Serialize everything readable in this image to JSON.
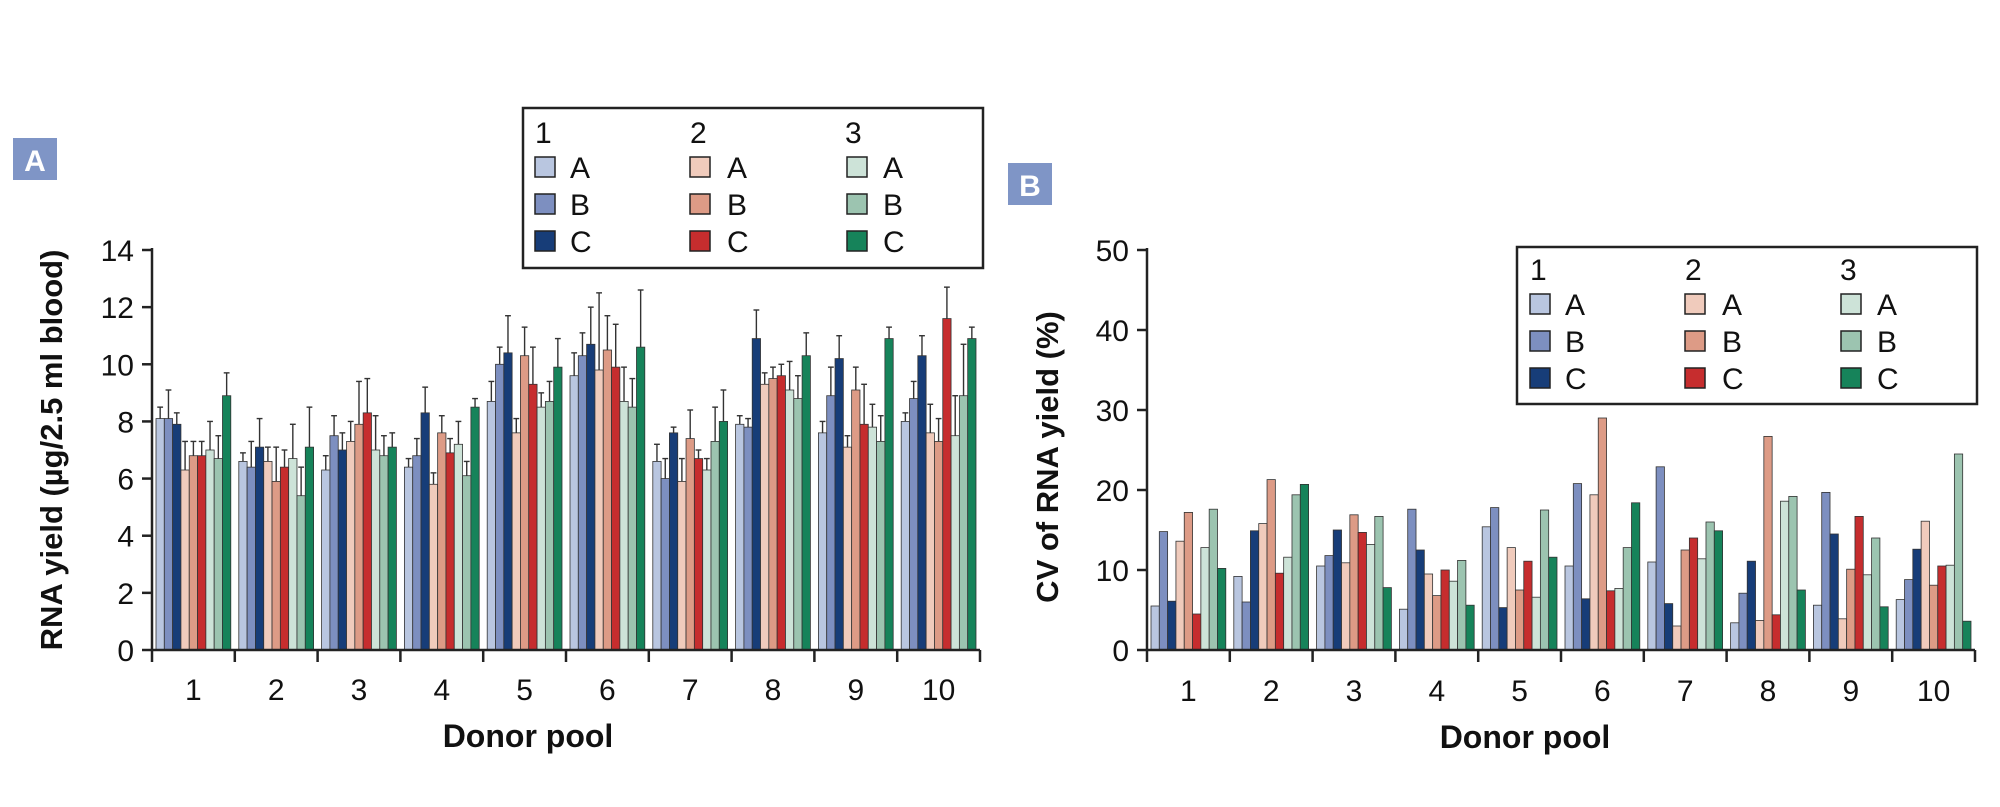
{
  "groups": [
    "1",
    "2",
    "3"
  ],
  "levels": [
    "A",
    "B",
    "C"
  ],
  "colors": {
    "1A": "#b9c6e0",
    "1B": "#7d8fc0",
    "1C": "#173d78",
    "2A": "#f0cbbc",
    "2B": "#dd9b86",
    "2C": "#c62d2e",
    "3A": "#cde3d8",
    "3B": "#9cc4b0",
    "3C": "#16835a",
    "axis": "#222222",
    "badge": "#7f95c6"
  },
  "chart_data": [
    {
      "panel": "A",
      "type": "bar",
      "xlabel": "Donor pool",
      "ylabel": "RNA yield (µg/2.5 ml blood)",
      "ylim": [
        0,
        14
      ],
      "yticks": [
        "0",
        "2",
        "4",
        "6",
        "8",
        "10",
        "12",
        "14"
      ],
      "categories": [
        "1",
        "2",
        "3",
        "4",
        "5",
        "6",
        "7",
        "8",
        "9",
        "10"
      ],
      "legend_position": "top-center",
      "error_bars": true,
      "series": [
        {
          "name": "1 A",
          "color_key": "1A",
          "values": [
            8.1,
            6.6,
            6.3,
            6.4,
            8.7,
            9.6,
            6.6,
            7.9,
            7.6,
            8.0
          ],
          "errors": [
            0.4,
            0.3,
            0.5,
            0.3,
            0.7,
            0.8,
            0.6,
            0.3,
            0.4,
            0.3
          ]
        },
        {
          "name": "1 B",
          "color_key": "1B",
          "values": [
            8.1,
            6.4,
            7.5,
            6.8,
            10.0,
            10.3,
            6.0,
            7.8,
            8.9,
            8.8
          ],
          "errors": [
            1.0,
            0.9,
            0.7,
            0.6,
            0.6,
            0.8,
            0.7,
            0.3,
            1.0,
            0.6
          ]
        },
        {
          "name": "1 C",
          "color_key": "1C",
          "values": [
            7.9,
            7.1,
            7.0,
            8.3,
            10.4,
            10.7,
            7.6,
            10.9,
            10.2,
            10.3
          ],
          "errors": [
            0.4,
            1.0,
            0.6,
            0.9,
            1.3,
            1.3,
            0.2,
            1.0,
            0.8,
            0.7
          ]
        },
        {
          "name": "2 A",
          "color_key": "2A",
          "values": [
            6.3,
            6.6,
            7.3,
            5.8,
            7.6,
            9.8,
            5.9,
            9.3,
            7.1,
            7.6
          ],
          "errors": [
            1.0,
            0.5,
            0.7,
            0.4,
            0.5,
            2.7,
            0.8,
            0.4,
            0.4,
            1.0
          ]
        },
        {
          "name": "2 B",
          "color_key": "2B",
          "values": [
            6.8,
            5.9,
            7.9,
            7.6,
            10.3,
            10.5,
            7.4,
            9.5,
            9.1,
            7.3
          ],
          "errors": [
            0.5,
            1.2,
            1.5,
            0.6,
            1.0,
            1.2,
            1.0,
            0.4,
            0.8,
            0.8
          ]
        },
        {
          "name": "2 C",
          "color_key": "2C",
          "values": [
            6.8,
            6.4,
            8.3,
            6.9,
            9.3,
            9.9,
            6.7,
            9.6,
            7.9,
            11.6
          ],
          "errors": [
            0.5,
            0.6,
            1.2,
            0.5,
            1.3,
            1.5,
            0.3,
            0.4,
            1.4,
            1.1
          ]
        },
        {
          "name": "3 A",
          "color_key": "3A",
          "values": [
            7.0,
            6.7,
            7.0,
            7.2,
            8.5,
            8.7,
            6.3,
            9.1,
            7.8,
            7.5
          ],
          "errors": [
            1.0,
            1.2,
            1.2,
            0.8,
            0.5,
            1.2,
            0.4,
            1.0,
            0.8,
            1.4
          ]
        },
        {
          "name": "3 B",
          "color_key": "3B",
          "values": [
            6.7,
            5.4,
            6.8,
            6.1,
            8.7,
            8.5,
            7.3,
            8.8,
            7.3,
            8.9
          ],
          "errors": [
            0.8,
            1.0,
            0.7,
            0.5,
            0.7,
            1.0,
            1.2,
            0.8,
            0.9,
            1.8
          ]
        },
        {
          "name": "3 C",
          "color_key": "3C",
          "values": [
            8.9,
            7.1,
            7.1,
            8.5,
            9.9,
            10.6,
            8.0,
            10.3,
            10.9,
            10.9
          ],
          "errors": [
            0.8,
            1.4,
            0.5,
            0.3,
            1.0,
            2.0,
            1.1,
            0.8,
            0.4,
            0.4
          ]
        }
      ]
    },
    {
      "panel": "B",
      "type": "bar",
      "xlabel": "Donor pool",
      "ylabel": "CV of RNA yield (%)",
      "ylim": [
        0,
        50
      ],
      "yticks": [
        "0",
        "10",
        "20",
        "30",
        "40",
        "50"
      ],
      "categories": [
        "1",
        "2",
        "3",
        "4",
        "5",
        "6",
        "7",
        "8",
        "9",
        "10"
      ],
      "legend_position": "top-right",
      "error_bars": false,
      "series": [
        {
          "name": "1 A",
          "color_key": "1A",
          "values": [
            5.5,
            9.2,
            10.5,
            5.1,
            15.4,
            10.5,
            11.0,
            3.4,
            5.6,
            6.3
          ]
        },
        {
          "name": "1 B",
          "color_key": "1B",
          "values": [
            14.8,
            6.0,
            11.8,
            17.6,
            17.8,
            20.8,
            22.9,
            7.1,
            19.7,
            8.8
          ]
        },
        {
          "name": "1 C",
          "color_key": "1C",
          "values": [
            6.1,
            14.9,
            15.0,
            12.5,
            5.3,
            6.4,
            5.8,
            11.1,
            14.5,
            12.6
          ]
        },
        {
          "name": "2 A",
          "color_key": "2A",
          "values": [
            13.6,
            15.8,
            10.9,
            9.5,
            12.8,
            19.4,
            3.0,
            3.7,
            3.9,
            16.1
          ]
        },
        {
          "name": "2 B",
          "color_key": "2B",
          "values": [
            17.2,
            21.3,
            16.9,
            6.8,
            7.5,
            29.0,
            12.5,
            26.7,
            10.1,
            8.1
          ]
        },
        {
          "name": "2 C",
          "color_key": "2C",
          "values": [
            4.5,
            9.6,
            14.7,
            10.0,
            11.1,
            7.4,
            14.0,
            4.4,
            16.7,
            10.5
          ]
        },
        {
          "name": "3 A",
          "color_key": "3A",
          "values": [
            12.8,
            11.6,
            13.2,
            8.6,
            6.6,
            7.7,
            11.4,
            18.6,
            9.4,
            10.6
          ]
        },
        {
          "name": "3 B",
          "color_key": "3B",
          "values": [
            17.6,
            19.4,
            16.7,
            11.2,
            17.5,
            12.8,
            16.0,
            19.2,
            14.0,
            24.5
          ]
        },
        {
          "name": "3 C",
          "color_key": "3C",
          "values": [
            10.2,
            20.7,
            7.8,
            5.6,
            11.6,
            18.4,
            14.9,
            7.5,
            5.4,
            3.6
          ]
        }
      ]
    }
  ]
}
